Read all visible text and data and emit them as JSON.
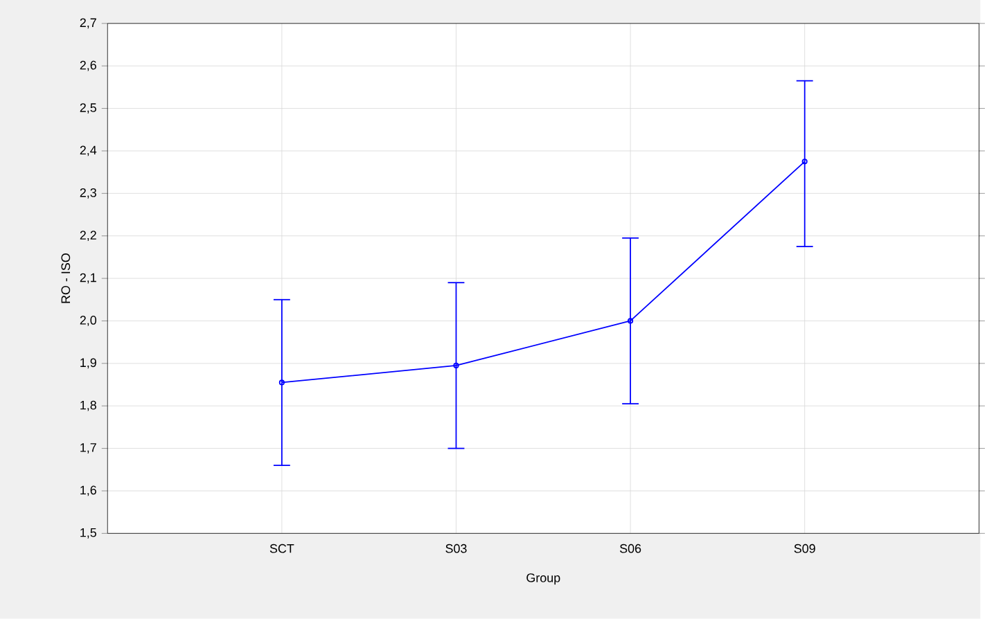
{
  "chart_data": {
    "type": "line",
    "xlabel": "Group",
    "ylabel": "RO - ISO",
    "categories": [
      "SCT",
      "S03",
      "S06",
      "S09"
    ],
    "series": [
      {
        "color": "#0000ff",
        "values": [
          1.855,
          1.895,
          2.0,
          2.375
        ],
        "errors": [
          [
            1.66,
            2.05
          ],
          [
            1.7,
            2.09
          ],
          [
            1.805,
            2.195
          ],
          [
            2.175,
            2.565
          ]
        ]
      }
    ],
    "ylim": [
      1.5,
      2.7
    ],
    "yticks": [
      {
        "value": 1.5,
        "label": "1,5"
      },
      {
        "value": 1.6,
        "label": "1,6"
      },
      {
        "value": 1.7,
        "label": "1,7"
      },
      {
        "value": 1.8,
        "label": "1,8"
      },
      {
        "value": 1.9,
        "label": "1,9"
      },
      {
        "value": 2.0,
        "label": "2,0"
      },
      {
        "value": 2.1,
        "label": "2,1"
      },
      {
        "value": 2.2,
        "label": "2,2"
      },
      {
        "value": 2.3,
        "label": "2,3"
      },
      {
        "value": 2.4,
        "label": "2,4"
      },
      {
        "value": 2.5,
        "label": "2,5"
      },
      {
        "value": 2.6,
        "label": "2,6"
      },
      {
        "value": 2.7,
        "label": "2,7"
      }
    ],
    "grid": true,
    "marker": "circle",
    "line_style": "solid"
  }
}
